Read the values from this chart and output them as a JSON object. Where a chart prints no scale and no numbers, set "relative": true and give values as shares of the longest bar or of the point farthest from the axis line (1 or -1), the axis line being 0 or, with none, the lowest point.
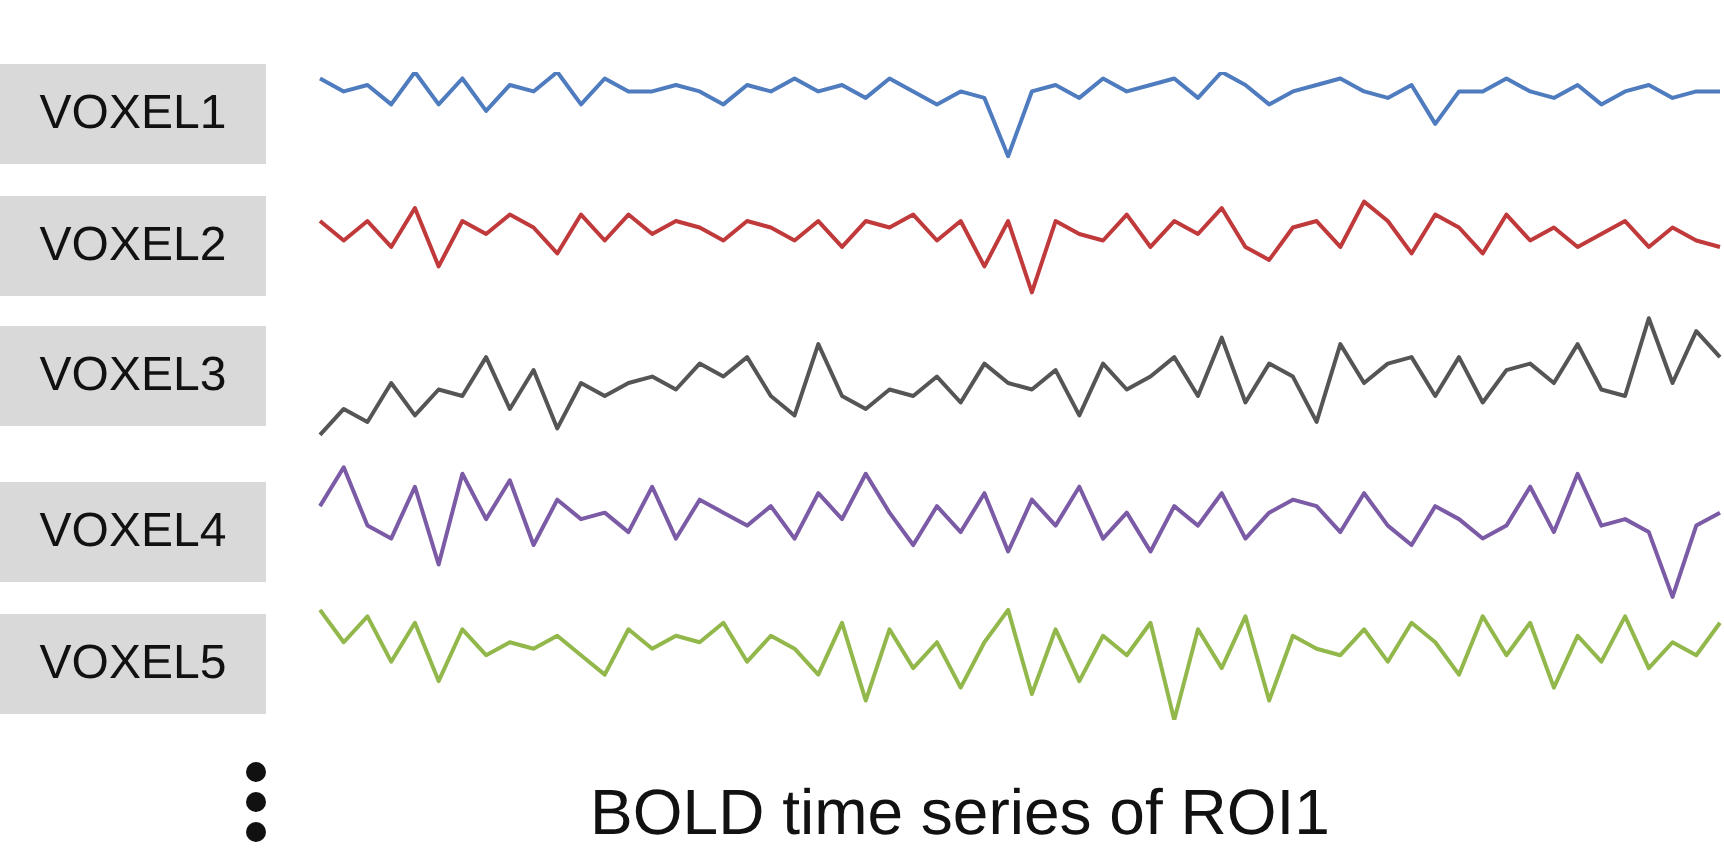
{
  "chart_data": {
    "type": "line",
    "title": "BOLD time series of ROI1",
    "relative": true,
    "marker": "none",
    "categories": [
      null,
      null,
      null,
      null,
      null,
      null,
      null,
      null,
      null,
      null,
      null,
      null,
      null,
      null,
      null,
      null,
      null,
      null,
      null,
      null,
      null,
      null,
      null,
      null,
      null,
      null,
      null,
      null,
      null,
      null,
      null,
      null,
      null,
      null,
      null,
      null,
      null,
      null,
      null,
      null,
      null,
      null,
      null,
      null,
      null,
      null,
      null,
      null,
      null,
      null,
      null,
      null,
      null,
      null,
      null,
      null,
      null,
      null,
      null,
      null
    ],
    "series": [
      {
        "name": "VOXEL1",
        "color": "#4f7bbf",
        "values": [
          0.99,
          0.97,
          0.98,
          0.95,
          1.0,
          0.95,
          0.99,
          0.94,
          0.98,
          0.97,
          1.0,
          0.95,
          0.99,
          0.97,
          0.97,
          0.98,
          0.97,
          0.95,
          0.98,
          0.97,
          0.99,
          0.97,
          0.98,
          0.96,
          0.99,
          0.97,
          0.95,
          0.97,
          0.96,
          0.87,
          0.97,
          0.98,
          0.96,
          0.99,
          0.97,
          0.98,
          0.99,
          0.96,
          1.0,
          0.98,
          0.95,
          0.97,
          0.98,
          0.99,
          0.97,
          0.96,
          0.98,
          0.92,
          0.97,
          0.97,
          0.99,
          0.97,
          0.96,
          0.98,
          0.95,
          0.97,
          0.98,
          0.96,
          0.97,
          0.97
        ]
      },
      {
        "name": "VOXEL2",
        "color": "#c0393b",
        "values": [
          0.77,
          0.74,
          0.77,
          0.73,
          0.79,
          0.7,
          0.77,
          0.75,
          0.78,
          0.76,
          0.72,
          0.78,
          0.74,
          0.78,
          0.75,
          0.77,
          0.76,
          0.74,
          0.77,
          0.76,
          0.74,
          0.77,
          0.73,
          0.77,
          0.76,
          0.78,
          0.74,
          0.77,
          0.7,
          0.77,
          0.66,
          0.77,
          0.75,
          0.74,
          0.78,
          0.73,
          0.77,
          0.75,
          0.79,
          0.73,
          0.71,
          0.76,
          0.77,
          0.73,
          0.8,
          0.77,
          0.72,
          0.78,
          0.76,
          0.72,
          0.78,
          0.74,
          0.76,
          0.73,
          0.75,
          0.77,
          0.73,
          0.76,
          0.74,
          0.73
        ]
      },
      {
        "name": "VOXEL3",
        "color": "#555555",
        "values": [
          0.44,
          0.48,
          0.46,
          0.52,
          0.47,
          0.51,
          0.5,
          0.56,
          0.48,
          0.54,
          0.45,
          0.52,
          0.5,
          0.52,
          0.53,
          0.51,
          0.55,
          0.53,
          0.56,
          0.5,
          0.47,
          0.58,
          0.5,
          0.48,
          0.51,
          0.5,
          0.53,
          0.49,
          0.55,
          0.52,
          0.51,
          0.54,
          0.47,
          0.55,
          0.51,
          0.53,
          0.56,
          0.5,
          0.59,
          0.49,
          0.55,
          0.53,
          0.46,
          0.58,
          0.52,
          0.55,
          0.56,
          0.5,
          0.56,
          0.49,
          0.54,
          0.55,
          0.52,
          0.58,
          0.51,
          0.5,
          0.62,
          0.52,
          0.6,
          0.56
        ]
      },
      {
        "name": "VOXEL4",
        "color": "#7b5aa6",
        "values": [
          0.33,
          0.39,
          0.3,
          0.28,
          0.36,
          0.24,
          0.38,
          0.31,
          0.37,
          0.27,
          0.34,
          0.31,
          0.32,
          0.29,
          0.36,
          0.28,
          0.34,
          0.32,
          0.3,
          0.33,
          0.28,
          0.35,
          0.31,
          0.38,
          0.32,
          0.27,
          0.33,
          0.29,
          0.35,
          0.26,
          0.34,
          0.3,
          0.36,
          0.28,
          0.32,
          0.26,
          0.33,
          0.3,
          0.35,
          0.28,
          0.32,
          0.34,
          0.33,
          0.29,
          0.35,
          0.3,
          0.27,
          0.33,
          0.31,
          0.28,
          0.3,
          0.36,
          0.29,
          0.38,
          0.3,
          0.31,
          0.29,
          0.19,
          0.3,
          0.32
        ]
      },
      {
        "name": "VOXEL5",
        "color": "#92b84c",
        "values": [
          0.17,
          0.12,
          0.16,
          0.09,
          0.15,
          0.06,
          0.14,
          0.1,
          0.12,
          0.11,
          0.13,
          0.1,
          0.07,
          0.14,
          0.11,
          0.13,
          0.12,
          0.15,
          0.09,
          0.13,
          0.11,
          0.07,
          0.15,
          0.03,
          0.14,
          0.08,
          0.12,
          0.05,
          0.12,
          0.17,
          0.04,
          0.14,
          0.06,
          0.13,
          0.1,
          0.15,
          0.0,
          0.14,
          0.08,
          0.16,
          0.03,
          0.13,
          0.11,
          0.1,
          0.14,
          0.09,
          0.15,
          0.12,
          0.07,
          0.16,
          0.1,
          0.15,
          0.05,
          0.13,
          0.09,
          0.16,
          0.08,
          0.12,
          0.1,
          0.15
        ]
      }
    ]
  }
}
